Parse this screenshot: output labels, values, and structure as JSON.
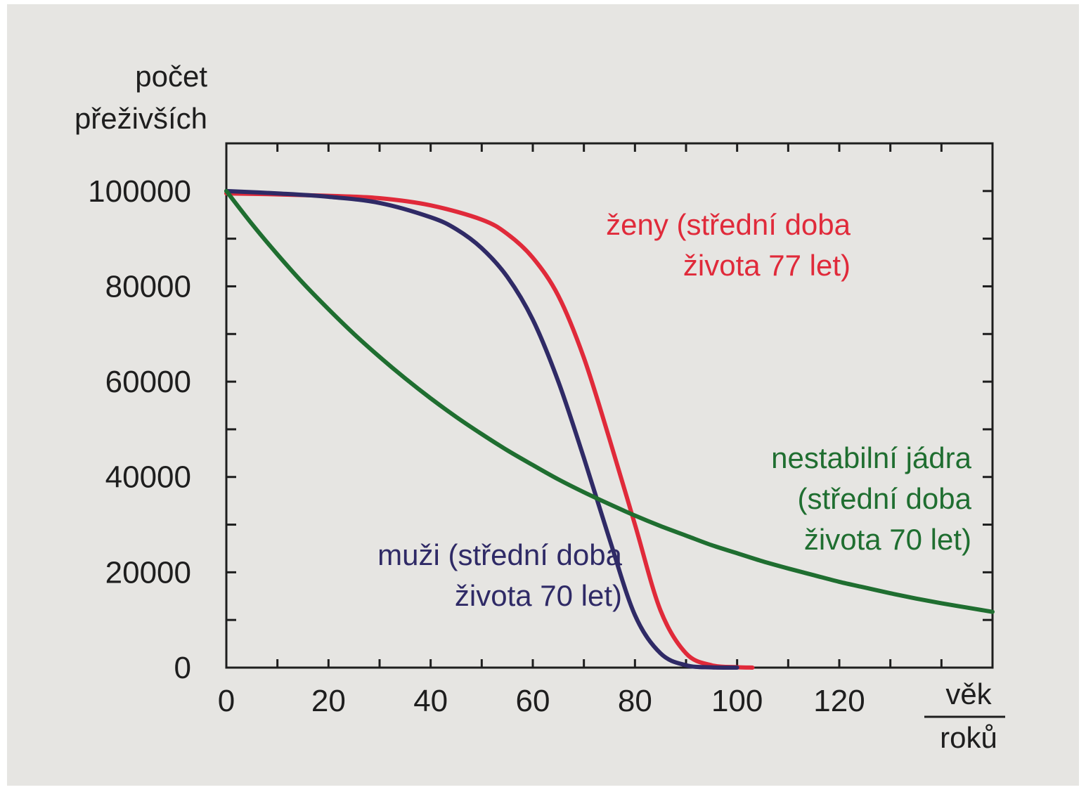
{
  "chart_data": {
    "type": "line",
    "ylabel": [
      "počet",
      "přeživších"
    ],
    "xlabel_numerator": "věk",
    "xlabel_denominator": "roků",
    "xlim": [
      0,
      150
    ],
    "ylim": [
      0,
      110000
    ],
    "x_ticks": [
      0,
      20,
      40,
      60,
      80,
      100,
      120
    ],
    "y_ticks": [
      0,
      20000,
      40000,
      60000,
      80000,
      100000
    ],
    "x_tick_labels": [
      "0",
      "20",
      "40",
      "60",
      "80",
      "100",
      "120"
    ],
    "y_tick_labels": [
      "0",
      "20000",
      "40000",
      "60000",
      "80000",
      "100000"
    ],
    "grid": false,
    "series": [
      {
        "key": "zeny",
        "color": "#e02a3a",
        "label": [
          "ženy (střední doba",
          "života 77 let)"
        ],
        "x": [
          0,
          10,
          20,
          30,
          40,
          50,
          55,
          60,
          65,
          70,
          75,
          80,
          85,
          90,
          95,
          100,
          103
        ],
        "y": [
          99500,
          99300,
          99000,
          98500,
          97000,
          94000,
          91000,
          86000,
          78000,
          65000,
          48000,
          30000,
          12000,
          3000,
          500,
          100,
          0
        ]
      },
      {
        "key": "muzi",
        "color": "#2f2a66",
        "label": [
          "muži (střední doba",
          "života 70 let)"
        ],
        "x": [
          0,
          10,
          20,
          30,
          40,
          45,
          50,
          55,
          60,
          65,
          70,
          75,
          80,
          85,
          90,
          95,
          100
        ],
        "y": [
          100000,
          99500,
          98800,
          97500,
          94500,
          92000,
          88000,
          82000,
          73000,
          60000,
          44000,
          27000,
          11000,
          3000,
          500,
          50,
          0
        ]
      },
      {
        "key": "jadra",
        "color": "#1f6e30",
        "label": [
          "nestabilní jádra",
          "(střední doba",
          "života 70 let)"
        ],
        "x": [
          0,
          5,
          10,
          15,
          20,
          25,
          30,
          35,
          40,
          45,
          50,
          55,
          60,
          65,
          70,
          75,
          80,
          85,
          90,
          95,
          100,
          105,
          110,
          115,
          120,
          125,
          130,
          135,
          140,
          145,
          150
        ],
        "y": [
          100000,
          93100,
          86700,
          80700,
          75200,
          70000,
          65200,
          60700,
          56500,
          52600,
          49000,
          45600,
          42500,
          39500,
          36800,
          34300,
          31900,
          29700,
          27700,
          25700,
          24000,
          22300,
          20800,
          19400,
          18000,
          16800,
          15600,
          14500,
          13500,
          12600,
          11700
        ]
      }
    ]
  }
}
